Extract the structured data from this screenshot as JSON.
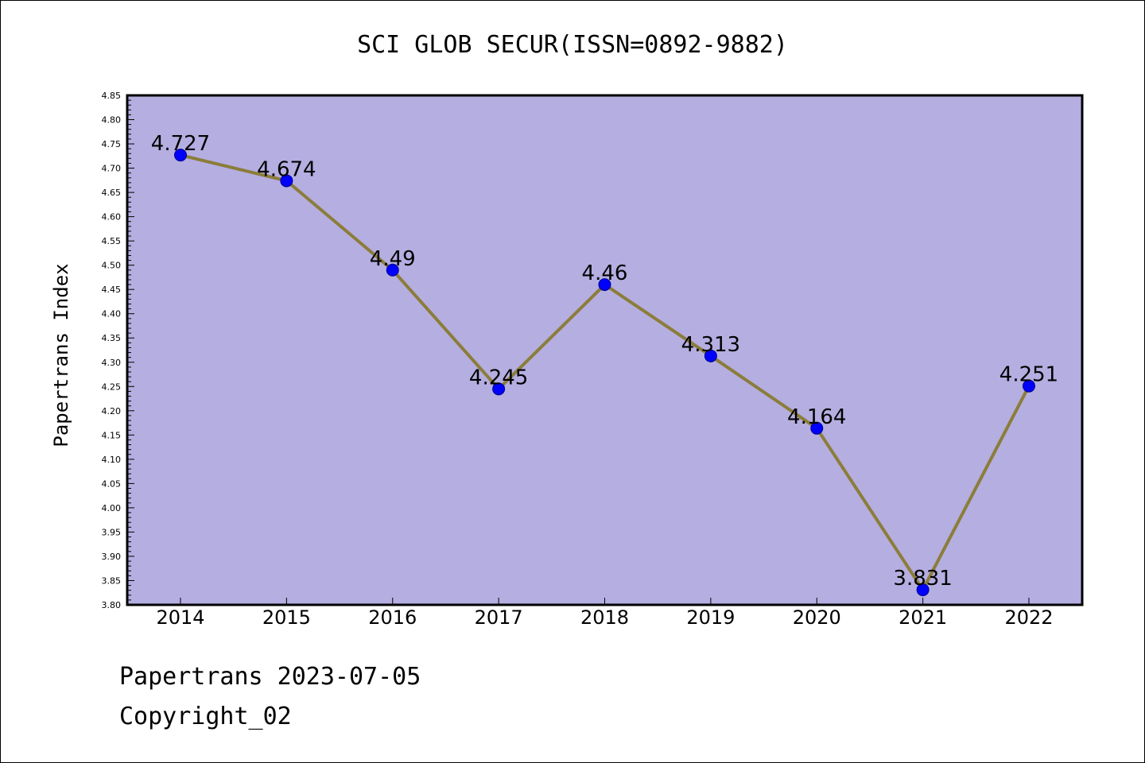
{
  "chart_data": {
    "type": "line",
    "title": "SCI GLOB SECUR(ISSN=0892-9882)",
    "xlabel": "",
    "ylabel": "Papertrans Index",
    "categories": [
      "2014",
      "2015",
      "2016",
      "2017",
      "2018",
      "2019",
      "2020",
      "2021",
      "2022"
    ],
    "series": [
      {
        "values": [
          4.727,
          4.674,
          4.49,
          4.245,
          4.46,
          4.313,
          4.164,
          3.831,
          4.251
        ],
        "data_labels": [
          "4.727",
          "4.674",
          "4.49",
          "4.245",
          "4.46",
          "4.313",
          "4.164",
          "3.831",
          "4.251"
        ]
      }
    ],
    "ylim": [
      3.8,
      4.85
    ],
    "y_major_ticks": [
      "3.80",
      "3.85",
      "3.90",
      "3.95",
      "4.00",
      "4.05",
      "4.10",
      "4.15",
      "4.20",
      "4.25",
      "4.30",
      "4.35",
      "4.40",
      "4.45",
      "4.50",
      "4.55",
      "4.60",
      "4.65",
      "4.70",
      "4.75",
      "4.80",
      "4.85"
    ],
    "grid": false,
    "legend": "none",
    "colors": {
      "plot_background": "#b5aee1",
      "line": "#8b7d3a",
      "marker": "#0000ff",
      "marker_edge": "#00008b",
      "axes": "#000000"
    }
  },
  "footer": {
    "date_line": "Papertrans 2023-07-05",
    "copyright_line": "Copyright_02"
  }
}
